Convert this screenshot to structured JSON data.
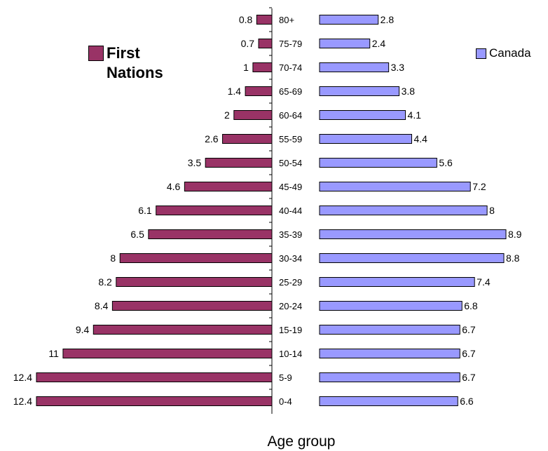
{
  "chart_data": {
    "type": "bar",
    "orientation": "horizontal",
    "layout": "population-pyramid",
    "categories": [
      "0-4",
      "5-9",
      "10-14",
      "15-19",
      "20-24",
      "25-29",
      "30-34",
      "35-39",
      "40-44",
      "45-49",
      "50-54",
      "55-59",
      "60-64",
      "65-69",
      "70-74",
      "75-79",
      "80+"
    ],
    "series": [
      {
        "name": "First\nNations",
        "side": "left",
        "color": "#993366",
        "values": [
          12.4,
          12.4,
          11,
          9.4,
          8.4,
          8.2,
          8,
          6.5,
          6.1,
          4.6,
          3.5,
          2.6,
          2,
          1.4,
          1,
          0.7,
          0.8
        ]
      },
      {
        "name": "Canada",
        "side": "right",
        "color": "#9999ff",
        "values": [
          6.6,
          6.7,
          6.7,
          6.7,
          6.8,
          7.4,
          8.8,
          8.9,
          8,
          7.2,
          5.6,
          4.4,
          4.1,
          3.8,
          3.3,
          2.4,
          2.8
        ]
      }
    ],
    "xlabel": "Age group",
    "legend_position": "top",
    "grid": false
  }
}
